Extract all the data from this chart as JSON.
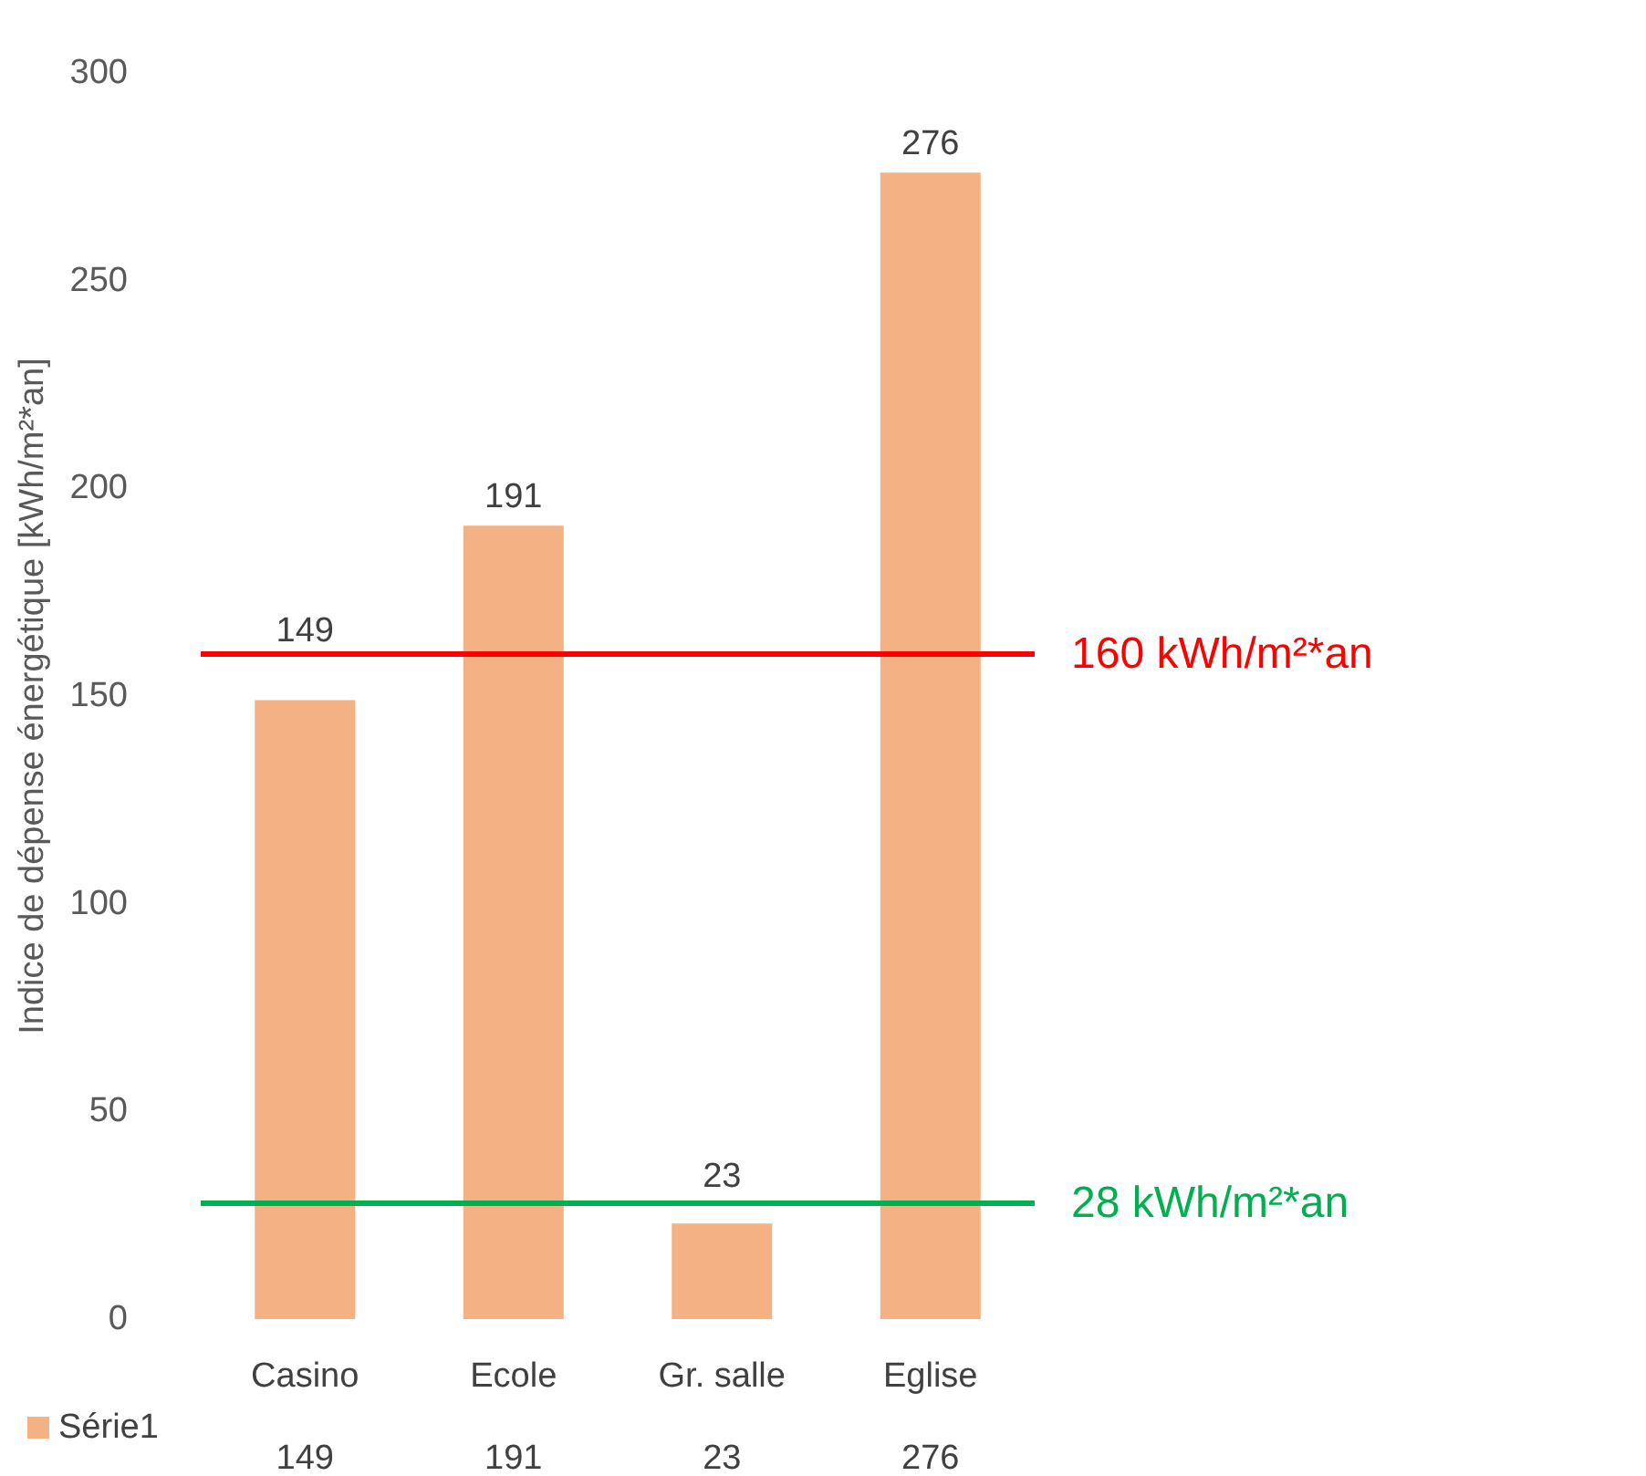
{
  "chart_data": {
    "type": "bar",
    "ylabel": "Indice de dépense énergétique [kWh/m²*an]",
    "categories": [
      "Casino",
      "Ecole",
      "Gr. salle",
      "Eglise"
    ],
    "series": [
      {
        "name": "Série1",
        "color": "#f4b183",
        "values": [
          149,
          191,
          23,
          276
        ],
        "value_labels": [
          "149",
          "191",
          "23",
          "276"
        ]
      }
    ],
    "ylim": [
      0,
      300
    ],
    "yticks": [
      0,
      50,
      100,
      150,
      200,
      250,
      300
    ],
    "annotations": [
      {
        "text": "149",
        "x": "Casino",
        "y": 149
      },
      {
        "text": "191",
        "x": "Ecole",
        "y": 191
      },
      {
        "text": "23",
        "x": "Gr. salle",
        "y": 23
      },
      {
        "text": "276",
        "x": "Eglise",
        "y": 276
      }
    ],
    "grid": false,
    "legend": "bottom left",
    "data_labels": true,
    "ref_lines": [
      {
        "axis": "y",
        "value": 160,
        "label": "160 kWh/m²*an",
        "color": "#ff0000",
        "line_style": "solid"
      },
      {
        "axis": "y",
        "value": 28,
        "label": "28 kWh/m²*an",
        "color": "#00b050",
        "line_style": "solid"
      }
    ]
  }
}
